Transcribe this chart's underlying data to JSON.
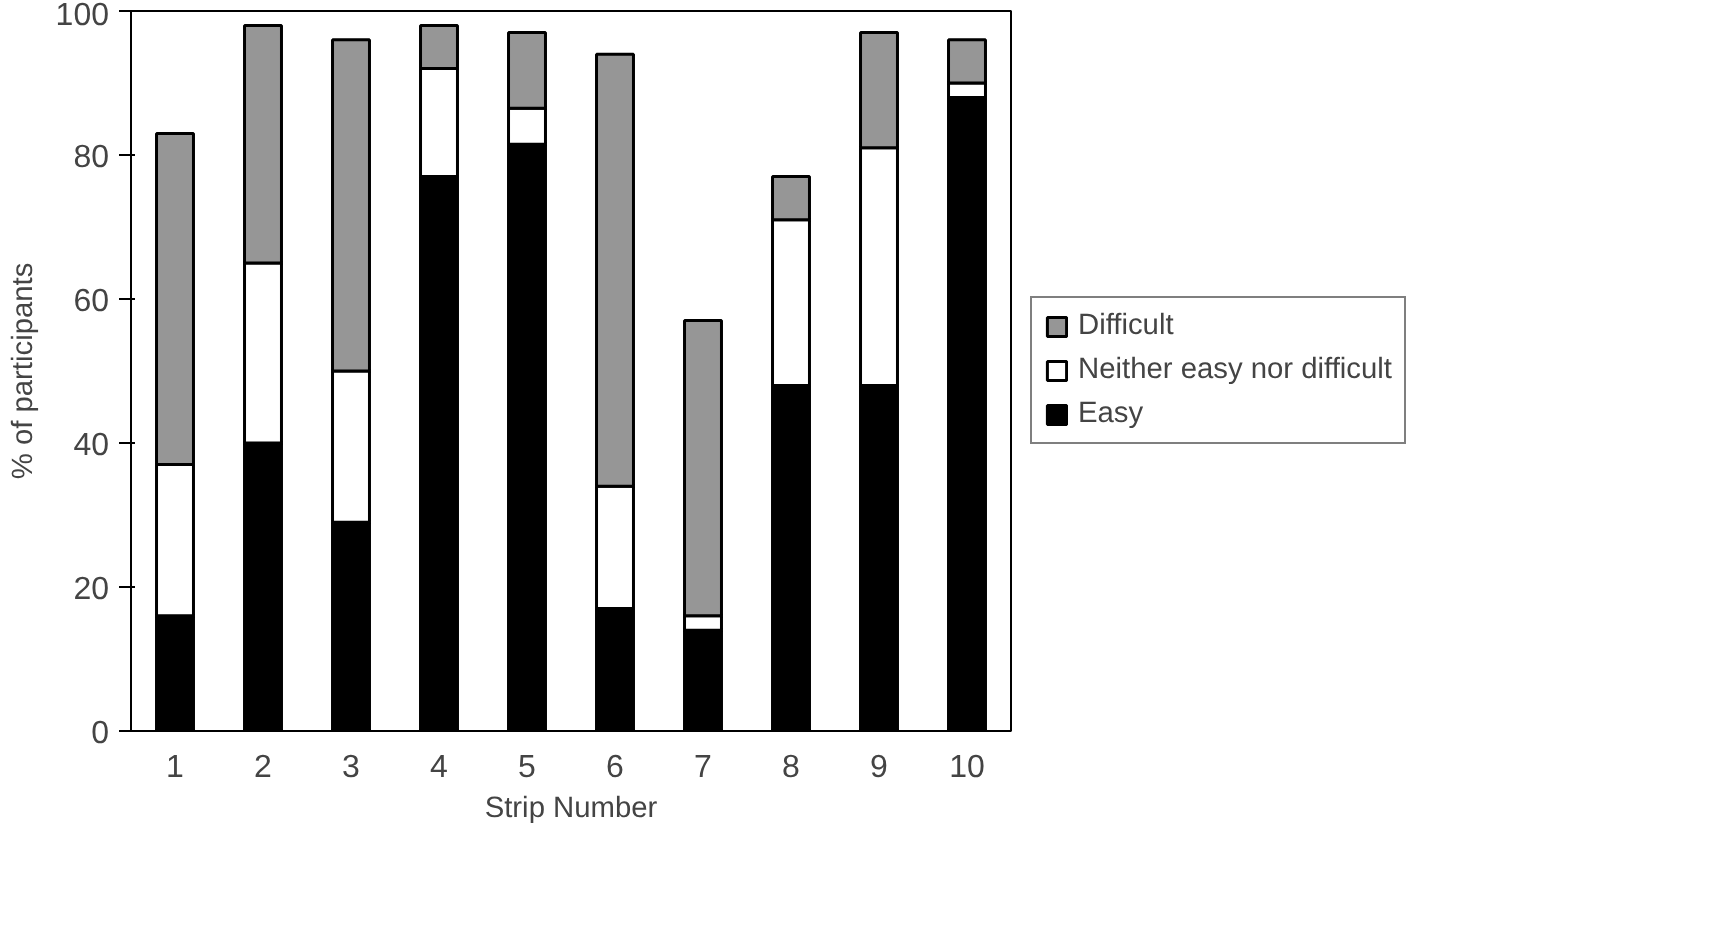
{
  "chart_data": {
    "type": "bar",
    "stacked": true,
    "xlabel": "Strip Number",
    "ylabel": "% of participants",
    "categories": [
      "1",
      "2",
      "3",
      "4",
      "5",
      "6",
      "7",
      "8",
      "9",
      "10"
    ],
    "series": [
      {
        "name": "Easy",
        "color": "#000000",
        "values": [
          16,
          40,
          29,
          77,
          81.5,
          17,
          14,
          48,
          48,
          88
        ]
      },
      {
        "name": "Neither easy nor difficult",
        "color": "#ffffff",
        "values": [
          21,
          25,
          21,
          15,
          5,
          17,
          2,
          23,
          33,
          2
        ]
      },
      {
        "name": "Difficult",
        "color": "#969696",
        "values": [
          46,
          33,
          46,
          6,
          10.5,
          60,
          41,
          6,
          16,
          6
        ]
      }
    ],
    "ylim": [
      0,
      100
    ],
    "yticks": [
      0,
      20,
      40,
      60,
      80,
      100
    ],
    "grid": false,
    "legend": "right"
  }
}
